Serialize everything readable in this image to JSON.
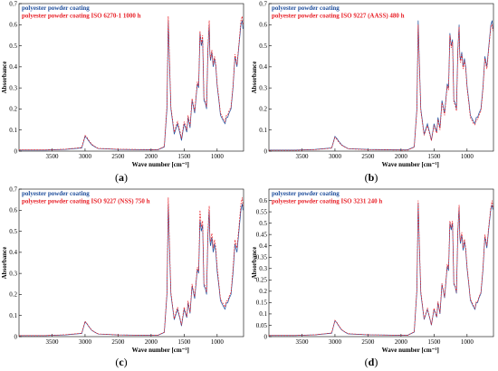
{
  "chart_data": [
    {
      "type": "line",
      "panel_label": "(a)",
      "xlabel": "Wave number [cm⁻¹]",
      "ylabel": "Absorbance",
      "xlim": [
        4000,
        600
      ],
      "ylim": [
        0,
        0.7
      ],
      "x_ticks": [
        3500,
        3000,
        2500,
        2000,
        1500,
        1000
      ],
      "y_ticks": [
        0,
        0.1,
        0.2,
        0.3,
        0.4,
        0.5,
        0.6,
        0.7
      ],
      "grid": false,
      "legend_position": "top-left",
      "series": [
        {
          "name": "polyester powder coating",
          "color": "#1f4e9c",
          "style": "solid"
        },
        {
          "name": "polyester powder coating ISO 6270-1 1000 h",
          "color": "#e8232a",
          "style": "dashed"
        }
      ],
      "x": [
        4000,
        3600,
        3300,
        3050,
        3000,
        2970,
        2950,
        2900,
        2850,
        2800,
        2500,
        2000,
        1900,
        1800,
        1760,
        1740,
        1720,
        1700,
        1650,
        1600,
        1560,
        1540,
        1500,
        1460,
        1440,
        1410,
        1380,
        1340,
        1300,
        1280,
        1260,
        1240,
        1220,
        1200,
        1180,
        1160,
        1140,
        1120,
        1110,
        1100,
        1080,
        1060,
        1040,
        1020,
        1000,
        970,
        950,
        900,
        880,
        860,
        840,
        820,
        790,
        760,
        730,
        700,
        670,
        640,
        620,
        610
      ],
      "y_values": [
        [
          0.005,
          0.005,
          0.008,
          0.015,
          0.07,
          0.06,
          0.05,
          0.03,
          0.02,
          0.012,
          0.008,
          0.006,
          0.006,
          0.02,
          0.2,
          0.62,
          0.4,
          0.2,
          0.08,
          0.13,
          0.08,
          0.05,
          0.13,
          0.09,
          0.16,
          0.11,
          0.24,
          0.18,
          0.32,
          0.3,
          0.56,
          0.5,
          0.53,
          0.24,
          0.23,
          0.2,
          0.48,
          0.6,
          0.46,
          0.43,
          0.47,
          0.4,
          0.44,
          0.4,
          0.31,
          0.23,
          0.17,
          0.14,
          0.13,
          0.16,
          0.16,
          0.18,
          0.2,
          0.3,
          0.45,
          0.4,
          0.5,
          0.6,
          0.62,
          0.58
        ],
        [
          0.006,
          0.006,
          0.009,
          0.017,
          0.075,
          0.065,
          0.054,
          0.033,
          0.022,
          0.013,
          0.009,
          0.007,
          0.007,
          0.022,
          0.22,
          0.64,
          0.42,
          0.21,
          0.09,
          0.14,
          0.09,
          0.06,
          0.14,
          0.1,
          0.17,
          0.12,
          0.25,
          0.19,
          0.33,
          0.31,
          0.57,
          0.51,
          0.55,
          0.25,
          0.24,
          0.21,
          0.49,
          0.62,
          0.47,
          0.44,
          0.48,
          0.41,
          0.45,
          0.41,
          0.32,
          0.24,
          0.18,
          0.15,
          0.14,
          0.17,
          0.17,
          0.19,
          0.21,
          0.31,
          0.46,
          0.41,
          0.51,
          0.62,
          0.64,
          0.6
        ]
      ]
    },
    {
      "type": "line",
      "panel_label": "(b)",
      "xlabel": "Wave number [cm⁻¹]",
      "ylabel": "Absorbance",
      "xlim": [
        4000,
        600
      ],
      "ylim": [
        0,
        0.7
      ],
      "x_ticks": [
        3500,
        3000,
        2500,
        2000,
        1500,
        1000
      ],
      "y_ticks": [
        0,
        0.1,
        0.2,
        0.3,
        0.4,
        0.5,
        0.6,
        0.7
      ],
      "grid": false,
      "legend_position": "top-left",
      "series": [
        {
          "name": "polyester powder coating",
          "color": "#1f4e9c",
          "style": "solid"
        },
        {
          "name": "polyester powder coating ISO 9227 (AASS) 480 h",
          "color": "#e8232a",
          "style": "dashed"
        }
      ],
      "x": [
        4000,
        3600,
        3300,
        3050,
        3000,
        2970,
        2950,
        2900,
        2850,
        2800,
        2500,
        2000,
        1900,
        1800,
        1760,
        1740,
        1720,
        1700,
        1650,
        1600,
        1560,
        1540,
        1500,
        1460,
        1440,
        1410,
        1380,
        1340,
        1300,
        1280,
        1260,
        1240,
        1220,
        1200,
        1180,
        1160,
        1140,
        1120,
        1110,
        1100,
        1080,
        1060,
        1040,
        1020,
        1000,
        970,
        950,
        900,
        880,
        860,
        840,
        820,
        790,
        760,
        730,
        700,
        670,
        640,
        620,
        610
      ],
      "y_values": [
        [
          0.005,
          0.005,
          0.008,
          0.015,
          0.07,
          0.06,
          0.05,
          0.03,
          0.02,
          0.012,
          0.008,
          0.006,
          0.006,
          0.02,
          0.2,
          0.62,
          0.4,
          0.2,
          0.08,
          0.13,
          0.08,
          0.05,
          0.13,
          0.09,
          0.16,
          0.11,
          0.24,
          0.18,
          0.32,
          0.3,
          0.56,
          0.5,
          0.53,
          0.24,
          0.23,
          0.2,
          0.48,
          0.6,
          0.46,
          0.43,
          0.47,
          0.4,
          0.44,
          0.4,
          0.31,
          0.23,
          0.17,
          0.14,
          0.13,
          0.16,
          0.16,
          0.18,
          0.2,
          0.3,
          0.45,
          0.4,
          0.5,
          0.6,
          0.62,
          0.58
        ],
        [
          0.004,
          0.004,
          0.007,
          0.014,
          0.065,
          0.055,
          0.046,
          0.028,
          0.019,
          0.011,
          0.007,
          0.005,
          0.005,
          0.019,
          0.19,
          0.6,
          0.39,
          0.19,
          0.075,
          0.12,
          0.075,
          0.05,
          0.12,
          0.085,
          0.15,
          0.1,
          0.23,
          0.17,
          0.31,
          0.29,
          0.55,
          0.49,
          0.52,
          0.23,
          0.22,
          0.19,
          0.47,
          0.59,
          0.45,
          0.42,
          0.46,
          0.39,
          0.43,
          0.39,
          0.3,
          0.22,
          0.16,
          0.13,
          0.125,
          0.15,
          0.15,
          0.17,
          0.19,
          0.29,
          0.44,
          0.39,
          0.49,
          0.59,
          0.6,
          0.57
        ]
      ]
    },
    {
      "type": "line",
      "panel_label": "(c)",
      "xlabel": "Wave number [cm⁻¹]",
      "ylabel": "Absorbance",
      "xlim": [
        4000,
        600
      ],
      "ylim": [
        0,
        0.7
      ],
      "x_ticks": [
        3500,
        3000,
        2500,
        2000,
        1500,
        1000
      ],
      "y_ticks": [
        0,
        0.1,
        0.2,
        0.3,
        0.4,
        0.5,
        0.6,
        0.7
      ],
      "grid": false,
      "legend_position": "top-left",
      "series": [
        {
          "name": "polyester powder coating",
          "color": "#1f4e9c",
          "style": "solid"
        },
        {
          "name": "polyester powder coating ISO 9227 (NSS) 750 h",
          "color": "#e8232a",
          "style": "dashed"
        }
      ],
      "x": [
        4000,
        3600,
        3300,
        3050,
        3000,
        2970,
        2950,
        2900,
        2850,
        2800,
        2500,
        2000,
        1900,
        1800,
        1760,
        1740,
        1720,
        1700,
        1650,
        1600,
        1560,
        1540,
        1500,
        1460,
        1440,
        1410,
        1380,
        1340,
        1300,
        1280,
        1260,
        1240,
        1220,
        1200,
        1180,
        1160,
        1140,
        1120,
        1110,
        1100,
        1080,
        1060,
        1040,
        1020,
        1000,
        970,
        950,
        900,
        880,
        860,
        840,
        820,
        790,
        760,
        730,
        700,
        670,
        640,
        620,
        610
      ],
      "y_values": [
        [
          0.005,
          0.005,
          0.008,
          0.015,
          0.07,
          0.06,
          0.05,
          0.03,
          0.02,
          0.012,
          0.008,
          0.006,
          0.006,
          0.02,
          0.2,
          0.63,
          0.4,
          0.2,
          0.08,
          0.13,
          0.08,
          0.05,
          0.13,
          0.09,
          0.16,
          0.11,
          0.24,
          0.18,
          0.32,
          0.3,
          0.55,
          0.5,
          0.53,
          0.24,
          0.23,
          0.2,
          0.48,
          0.6,
          0.46,
          0.43,
          0.47,
          0.4,
          0.44,
          0.4,
          0.31,
          0.23,
          0.17,
          0.14,
          0.13,
          0.16,
          0.16,
          0.18,
          0.2,
          0.3,
          0.44,
          0.4,
          0.5,
          0.6,
          0.63,
          0.6
        ],
        [
          0.005,
          0.005,
          0.009,
          0.016,
          0.073,
          0.062,
          0.052,
          0.031,
          0.021,
          0.013,
          0.008,
          0.006,
          0.006,
          0.021,
          0.21,
          0.66,
          0.42,
          0.21,
          0.085,
          0.14,
          0.085,
          0.055,
          0.14,
          0.095,
          0.17,
          0.115,
          0.25,
          0.19,
          0.33,
          0.31,
          0.6,
          0.52,
          0.55,
          0.25,
          0.24,
          0.21,
          0.5,
          0.62,
          0.48,
          0.45,
          0.49,
          0.42,
          0.46,
          0.42,
          0.33,
          0.24,
          0.18,
          0.15,
          0.14,
          0.17,
          0.17,
          0.19,
          0.21,
          0.32,
          0.46,
          0.42,
          0.52,
          0.63,
          0.66,
          0.62
        ]
      ]
    },
    {
      "type": "line",
      "panel_label": "(d)",
      "xlabel": "Wave number [cm⁻¹]",
      "ylabel": "Absorbance",
      "xlim": [
        4000,
        600
      ],
      "ylim": [
        0,
        0.65
      ],
      "x_ticks": [
        3500,
        3000,
        2500,
        2000,
        1500,
        1000
      ],
      "y_ticks": [
        0,
        0.05,
        0.1,
        0.15,
        0.2,
        0.25,
        0.3,
        0.35,
        0.4,
        0.45,
        0.5,
        0.55,
        0.6
      ],
      "grid": false,
      "legend_position": "top-left",
      "series": [
        {
          "name": "polyester powder coating",
          "color": "#1f4e9c",
          "style": "solid"
        },
        {
          "name": "polyester powder coating ISO 3231 240 h",
          "color": "#e8232a",
          "style": "dashed"
        }
      ],
      "x": [
        4000,
        3600,
        3300,
        3050,
        3000,
        2970,
        2950,
        2900,
        2850,
        2800,
        2500,
        2000,
        1900,
        1800,
        1760,
        1740,
        1720,
        1700,
        1650,
        1600,
        1560,
        1540,
        1500,
        1460,
        1440,
        1410,
        1380,
        1340,
        1300,
        1280,
        1260,
        1240,
        1220,
        1200,
        1180,
        1160,
        1140,
        1120,
        1110,
        1100,
        1080,
        1060,
        1040,
        1020,
        1000,
        970,
        950,
        900,
        880,
        860,
        840,
        820,
        790,
        760,
        730,
        700,
        670,
        640,
        620,
        610
      ],
      "y_values": [
        [
          0.005,
          0.005,
          0.008,
          0.015,
          0.07,
          0.06,
          0.05,
          0.03,
          0.02,
          0.012,
          0.008,
          0.006,
          0.006,
          0.02,
          0.2,
          0.59,
          0.38,
          0.19,
          0.075,
          0.12,
          0.075,
          0.05,
          0.12,
          0.085,
          0.15,
          0.1,
          0.23,
          0.17,
          0.31,
          0.29,
          0.5,
          0.47,
          0.5,
          0.23,
          0.22,
          0.19,
          0.46,
          0.57,
          0.44,
          0.41,
          0.45,
          0.38,
          0.42,
          0.38,
          0.3,
          0.22,
          0.16,
          0.13,
          0.12,
          0.15,
          0.15,
          0.17,
          0.19,
          0.29,
          0.44,
          0.39,
          0.48,
          0.56,
          0.58,
          0.56
        ],
        [
          0.005,
          0.005,
          0.008,
          0.016,
          0.072,
          0.062,
          0.052,
          0.031,
          0.021,
          0.013,
          0.008,
          0.006,
          0.006,
          0.021,
          0.21,
          0.6,
          0.39,
          0.2,
          0.078,
          0.125,
          0.078,
          0.052,
          0.125,
          0.088,
          0.155,
          0.105,
          0.235,
          0.175,
          0.32,
          0.3,
          0.51,
          0.48,
          0.51,
          0.235,
          0.225,
          0.195,
          0.47,
          0.58,
          0.45,
          0.42,
          0.46,
          0.39,
          0.43,
          0.39,
          0.31,
          0.225,
          0.165,
          0.135,
          0.125,
          0.155,
          0.155,
          0.175,
          0.195,
          0.3,
          0.45,
          0.4,
          0.49,
          0.57,
          0.6,
          0.57
        ]
      ]
    }
  ]
}
